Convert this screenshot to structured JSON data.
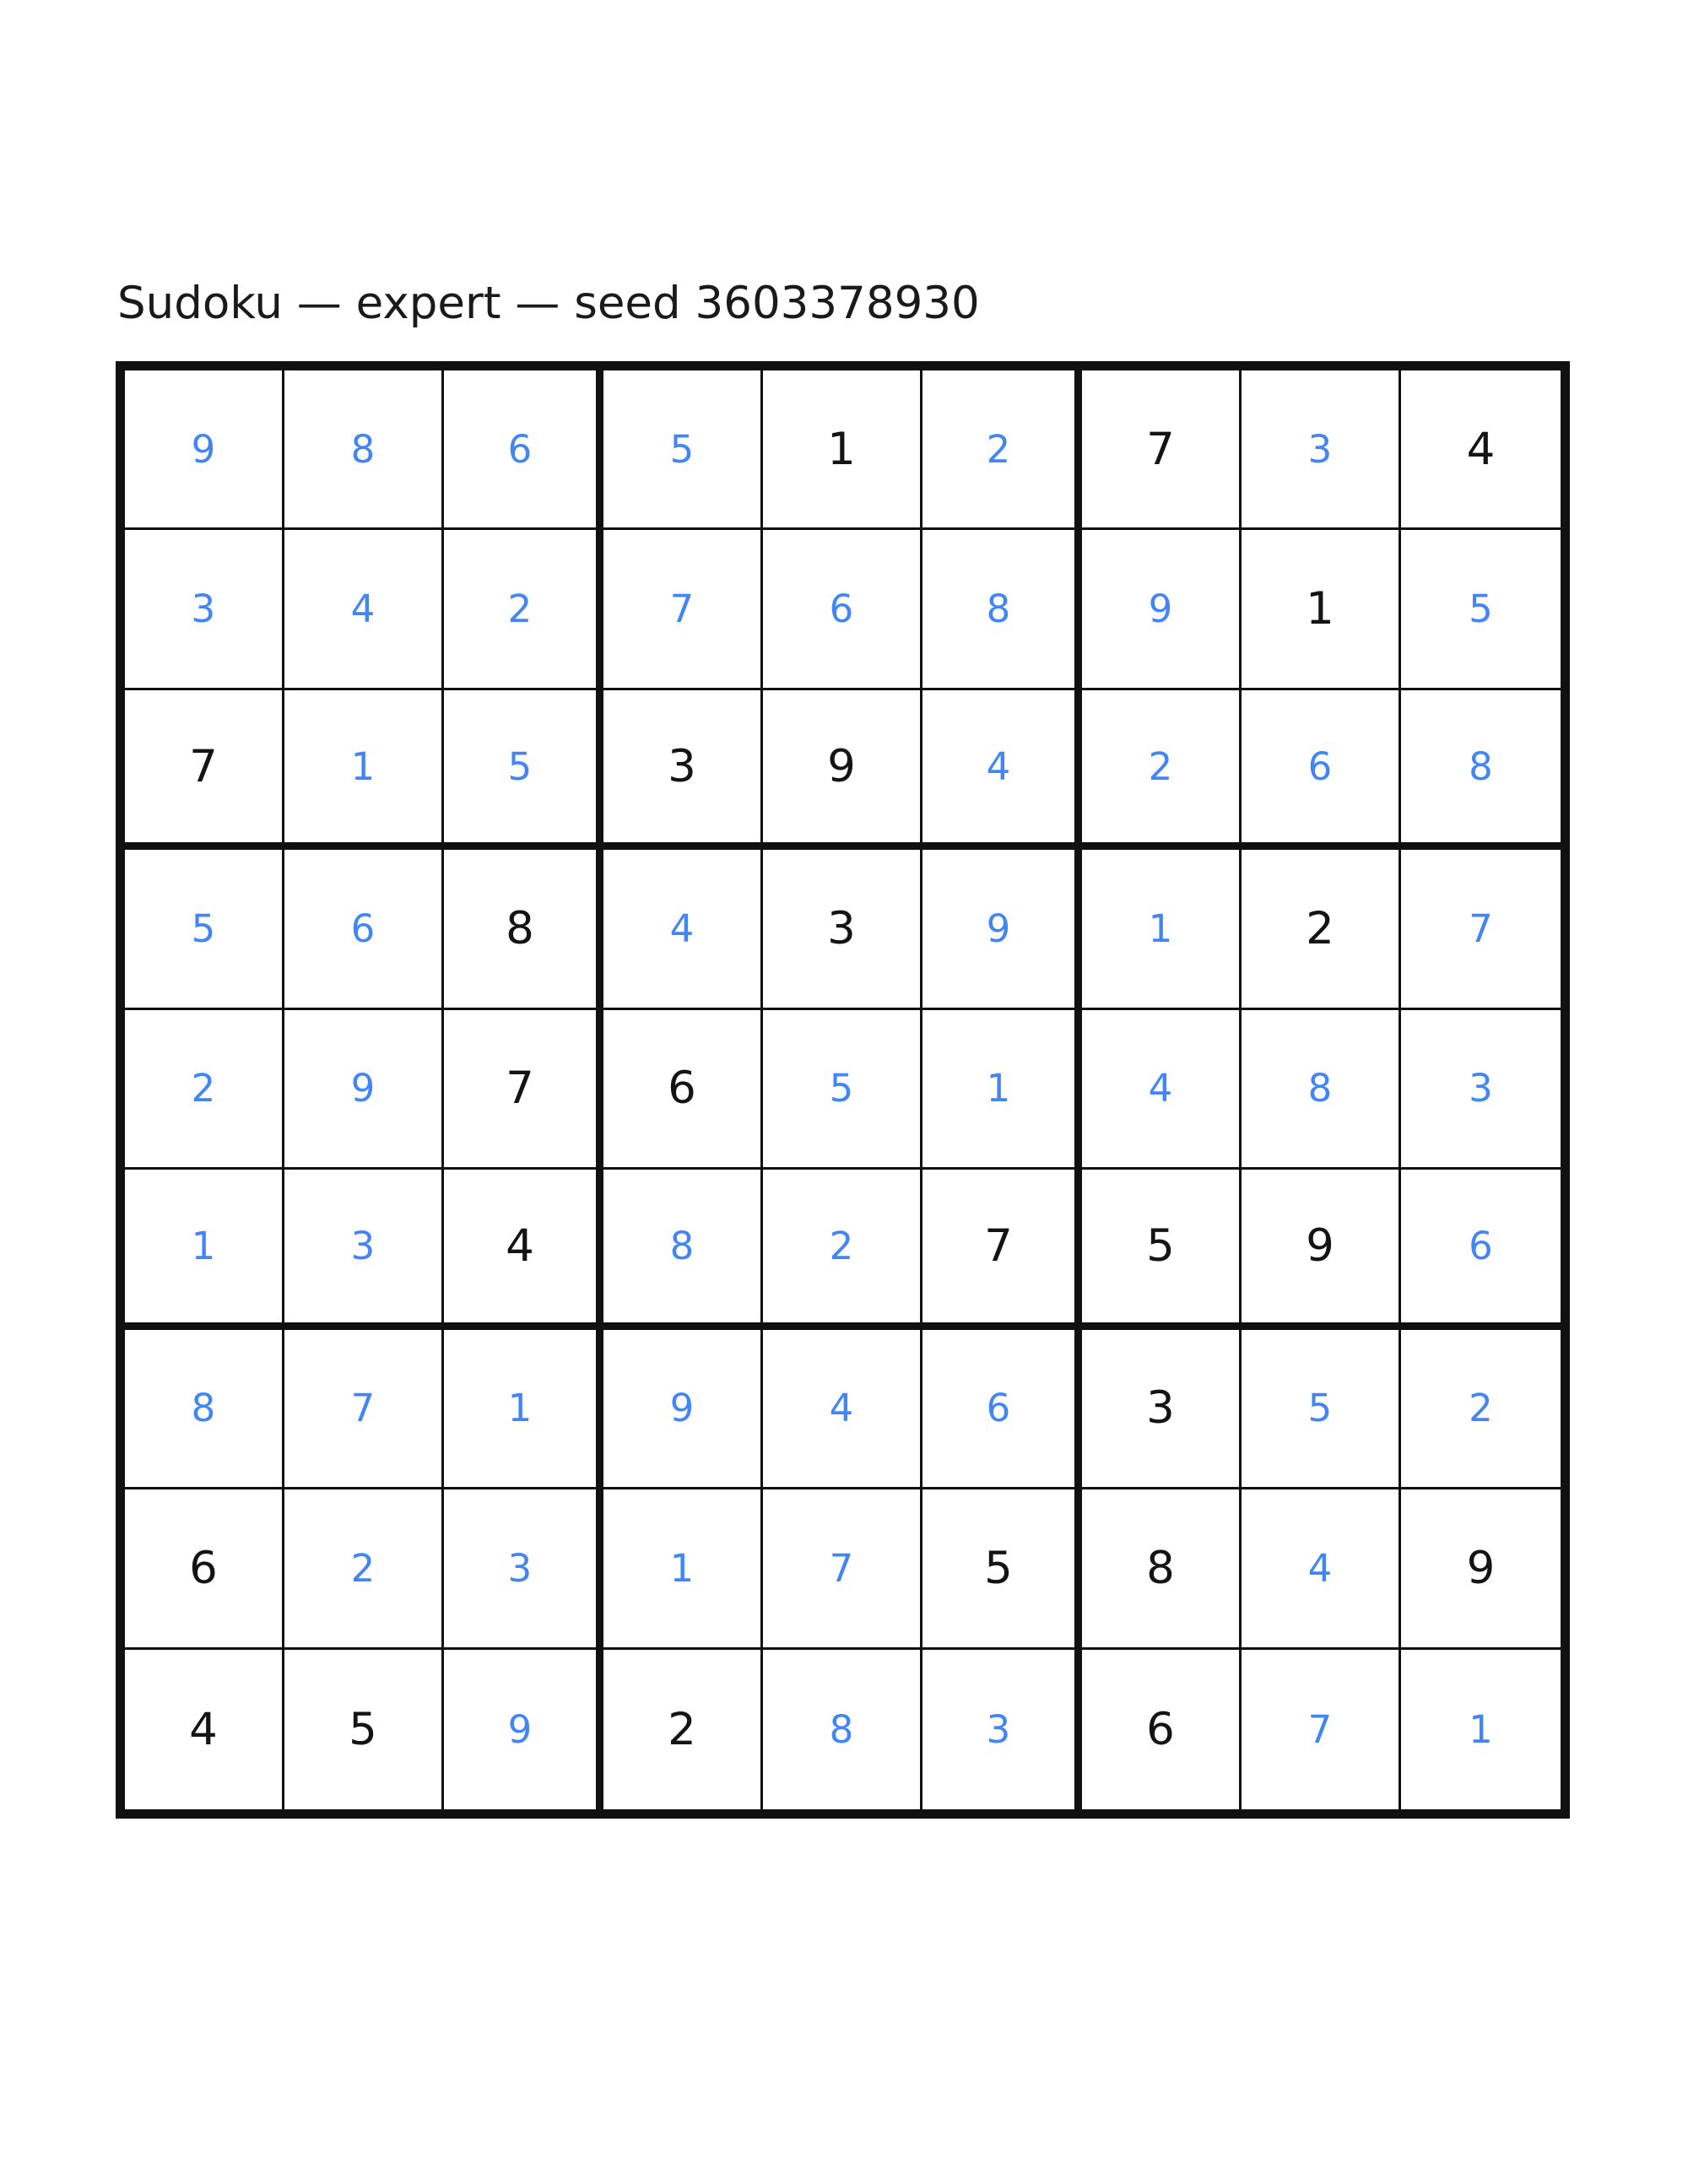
{
  "title": "Sudoku — expert — seed 3603378930",
  "puzzle_meta": {
    "name": "Sudoku",
    "difficulty": "expert",
    "seed": "3603378930"
  },
  "colors": {
    "given_digit": "#141414",
    "solved_digit": "#4285f4",
    "grid_line": "#111111",
    "background": "#ffffff"
  },
  "grid": {
    "size": 9,
    "legend": {
      "given": "black digit (clue)",
      "solved": "blue digit (filled value)"
    },
    "rows": [
      [
        {
          "v": "9",
          "t": "solved"
        },
        {
          "v": "8",
          "t": "solved"
        },
        {
          "v": "6",
          "t": "solved"
        },
        {
          "v": "5",
          "t": "solved"
        },
        {
          "v": "1",
          "t": "given"
        },
        {
          "v": "2",
          "t": "solved"
        },
        {
          "v": "7",
          "t": "given"
        },
        {
          "v": "3",
          "t": "solved"
        },
        {
          "v": "4",
          "t": "given"
        }
      ],
      [
        {
          "v": "3",
          "t": "solved"
        },
        {
          "v": "4",
          "t": "solved"
        },
        {
          "v": "2",
          "t": "solved"
        },
        {
          "v": "7",
          "t": "solved"
        },
        {
          "v": "6",
          "t": "solved"
        },
        {
          "v": "8",
          "t": "solved"
        },
        {
          "v": "9",
          "t": "solved"
        },
        {
          "v": "1",
          "t": "given"
        },
        {
          "v": "5",
          "t": "solved"
        }
      ],
      [
        {
          "v": "7",
          "t": "given"
        },
        {
          "v": "1",
          "t": "solved"
        },
        {
          "v": "5",
          "t": "solved"
        },
        {
          "v": "3",
          "t": "given"
        },
        {
          "v": "9",
          "t": "given"
        },
        {
          "v": "4",
          "t": "solved"
        },
        {
          "v": "2",
          "t": "solved"
        },
        {
          "v": "6",
          "t": "solved"
        },
        {
          "v": "8",
          "t": "solved"
        }
      ],
      [
        {
          "v": "5",
          "t": "solved"
        },
        {
          "v": "6",
          "t": "solved"
        },
        {
          "v": "8",
          "t": "given"
        },
        {
          "v": "4",
          "t": "solved"
        },
        {
          "v": "3",
          "t": "given"
        },
        {
          "v": "9",
          "t": "solved"
        },
        {
          "v": "1",
          "t": "solved"
        },
        {
          "v": "2",
          "t": "given"
        },
        {
          "v": "7",
          "t": "solved"
        }
      ],
      [
        {
          "v": "2",
          "t": "solved"
        },
        {
          "v": "9",
          "t": "solved"
        },
        {
          "v": "7",
          "t": "given"
        },
        {
          "v": "6",
          "t": "given"
        },
        {
          "v": "5",
          "t": "solved"
        },
        {
          "v": "1",
          "t": "solved"
        },
        {
          "v": "4",
          "t": "solved"
        },
        {
          "v": "8",
          "t": "solved"
        },
        {
          "v": "3",
          "t": "solved"
        }
      ],
      [
        {
          "v": "1",
          "t": "solved"
        },
        {
          "v": "3",
          "t": "solved"
        },
        {
          "v": "4",
          "t": "given"
        },
        {
          "v": "8",
          "t": "solved"
        },
        {
          "v": "2",
          "t": "solved"
        },
        {
          "v": "7",
          "t": "given"
        },
        {
          "v": "5",
          "t": "given"
        },
        {
          "v": "9",
          "t": "given"
        },
        {
          "v": "6",
          "t": "solved"
        }
      ],
      [
        {
          "v": "8",
          "t": "solved"
        },
        {
          "v": "7",
          "t": "solved"
        },
        {
          "v": "1",
          "t": "solved"
        },
        {
          "v": "9",
          "t": "solved"
        },
        {
          "v": "4",
          "t": "solved"
        },
        {
          "v": "6",
          "t": "solved"
        },
        {
          "v": "3",
          "t": "given"
        },
        {
          "v": "5",
          "t": "solved"
        },
        {
          "v": "2",
          "t": "solved"
        }
      ],
      [
        {
          "v": "6",
          "t": "given"
        },
        {
          "v": "2",
          "t": "solved"
        },
        {
          "v": "3",
          "t": "solved"
        },
        {
          "v": "1",
          "t": "solved"
        },
        {
          "v": "7",
          "t": "solved"
        },
        {
          "v": "5",
          "t": "given"
        },
        {
          "v": "8",
          "t": "given"
        },
        {
          "v": "4",
          "t": "solved"
        },
        {
          "v": "9",
          "t": "given"
        }
      ],
      [
        {
          "v": "4",
          "t": "given"
        },
        {
          "v": "5",
          "t": "given"
        },
        {
          "v": "9",
          "t": "solved"
        },
        {
          "v": "2",
          "t": "given"
        },
        {
          "v": "8",
          "t": "solved"
        },
        {
          "v": "3",
          "t": "solved"
        },
        {
          "v": "6",
          "t": "given"
        },
        {
          "v": "7",
          "t": "solved"
        },
        {
          "v": "1",
          "t": "solved"
        }
      ]
    ]
  }
}
